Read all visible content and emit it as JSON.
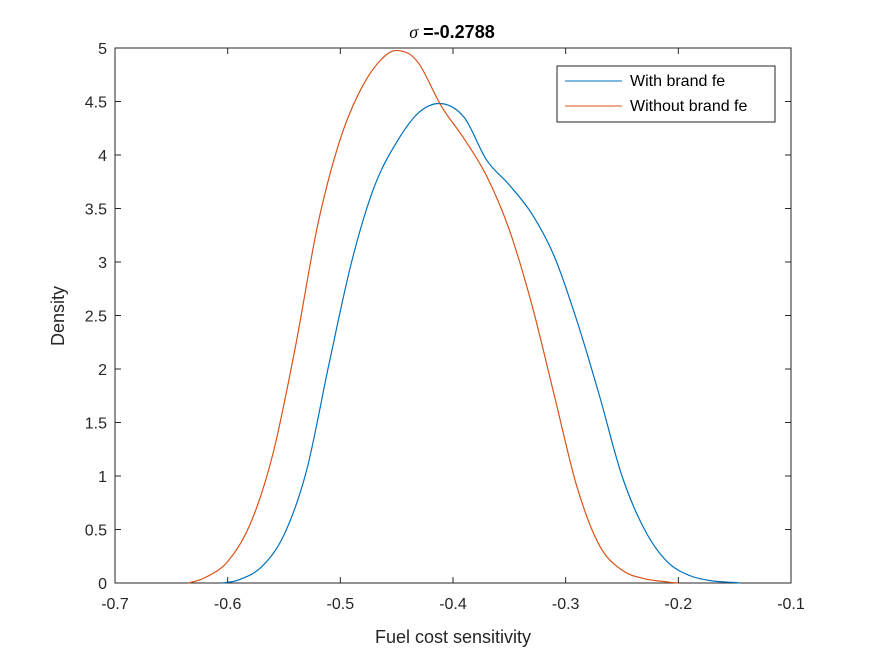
{
  "chart_data": {
    "type": "line",
    "title_symbol": "σ",
    "title_value": " =-0.2788",
    "xlabel": "Fuel cost sensitivity",
    "ylabel": "Density",
    "xlim": [
      -0.7,
      -0.1
    ],
    "ylim": [
      0,
      5
    ],
    "xticks": [
      -0.7,
      -0.6,
      -0.5,
      -0.4,
      -0.3,
      -0.2,
      -0.1
    ],
    "xtick_labels": [
      "-0.7",
      "-0.6",
      "-0.5",
      "-0.4",
      "-0.3",
      "-0.2",
      "-0.1"
    ],
    "yticks": [
      0,
      0.5,
      1,
      1.5,
      2,
      2.5,
      3,
      3.5,
      4,
      4.5,
      5
    ],
    "ytick_labels": [
      "0",
      "0.5",
      "1",
      "1.5",
      "2",
      "2.5",
      "3",
      "3.5",
      "4",
      "4.5",
      "5"
    ],
    "grid": false,
    "legend_position": "top-right",
    "series": [
      {
        "name": "With brand fe",
        "color": "#0072BD",
        "x": [
          -0.605,
          -0.59,
          -0.57,
          -0.55,
          -0.53,
          -0.51,
          -0.49,
          -0.47,
          -0.45,
          -0.43,
          -0.41,
          -0.39,
          -0.37,
          -0.35,
          -0.33,
          -0.31,
          -0.29,
          -0.27,
          -0.25,
          -0.23,
          -0.21,
          -0.19,
          -0.17,
          -0.15,
          -0.145
        ],
        "y": [
          0.0,
          0.03,
          0.15,
          0.45,
          1.05,
          2.05,
          3.0,
          3.7,
          4.12,
          4.4,
          4.48,
          4.35,
          3.95,
          3.72,
          3.45,
          3.05,
          2.45,
          1.75,
          1.0,
          0.5,
          0.2,
          0.07,
          0.02,
          0.005,
          0.0
        ]
      },
      {
        "name": "Without brand fe",
        "color": "#D95319",
        "x": [
          -0.635,
          -0.62,
          -0.6,
          -0.58,
          -0.56,
          -0.54,
          -0.52,
          -0.5,
          -0.48,
          -0.46,
          -0.445,
          -0.43,
          -0.41,
          -0.39,
          -0.37,
          -0.35,
          -0.33,
          -0.31,
          -0.29,
          -0.27,
          -0.25,
          -0.23,
          -0.21,
          -0.2
        ],
        "y": [
          0.0,
          0.05,
          0.2,
          0.55,
          1.2,
          2.2,
          3.35,
          4.15,
          4.65,
          4.93,
          4.97,
          4.85,
          4.45,
          4.15,
          3.8,
          3.3,
          2.6,
          1.75,
          0.9,
          0.35,
          0.12,
          0.04,
          0.01,
          0.0
        ]
      }
    ]
  }
}
